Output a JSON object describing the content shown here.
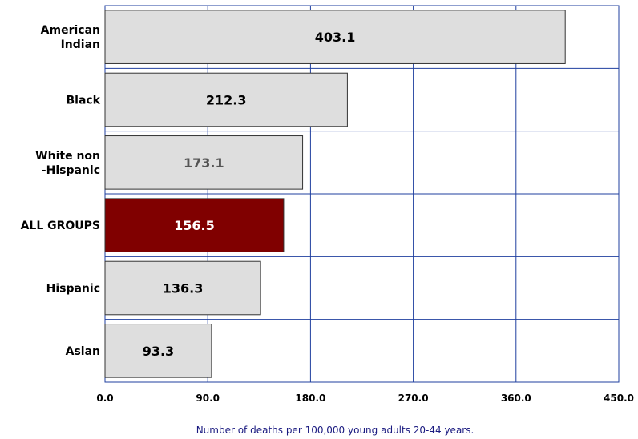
{
  "chart_data": {
    "type": "bar",
    "orientation": "horizontal",
    "categories": [
      "American Indian",
      "Black",
      "White non -Hispanic",
      "ALL GROUPS",
      "Hispanic",
      "Asian"
    ],
    "category_label_lines": [
      [
        "American",
        "Indian"
      ],
      [
        "Black"
      ],
      [
        "White non",
        "-Hispanic"
      ],
      [
        "ALL GROUPS"
      ],
      [
        "Hispanic"
      ],
      [
        "Asian"
      ]
    ],
    "values": [
      403.1,
      212.3,
      173.1,
      156.5,
      136.3,
      93.3
    ],
    "value_labels": [
      "403.1",
      "212.3",
      "173.1",
      "156.5",
      "136.3",
      "93.3"
    ],
    "highlight_category": "ALL GROUPS",
    "title": "",
    "xlabel": "Number of deaths per 100,000 young adults 20-44 years.",
    "ylabel": "",
    "xlim": [
      0,
      450
    ],
    "xticks": [
      0,
      90,
      180,
      270,
      360,
      450
    ],
    "xtick_labels": [
      "0.0",
      "90.0",
      "180.0",
      "270.0",
      "360.0",
      "450.0"
    ],
    "grid": true,
    "legend": "none"
  },
  "colors": {
    "bar_fill": "#dedede",
    "bar_stroke": "#333333",
    "highlight_fill": "#800000",
    "highlight_text": "#ffffff",
    "value_text": "#000000",
    "muted_value_text": "#555555",
    "grid": "#1f3f9f",
    "xlabel": "#1a1a80"
  }
}
